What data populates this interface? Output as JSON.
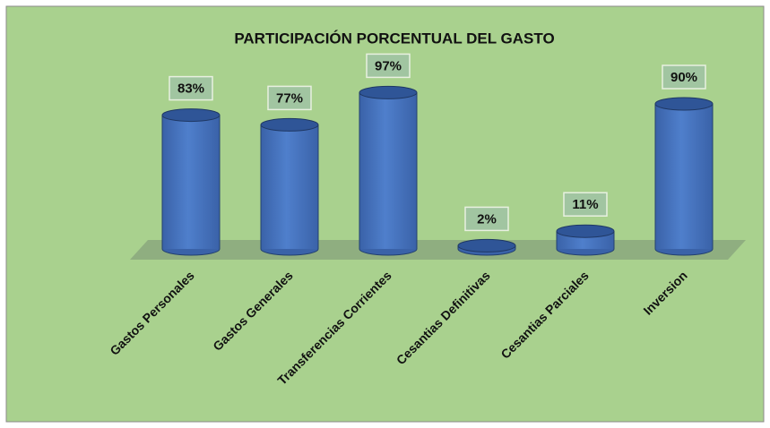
{
  "chart_data": {
    "type": "bar",
    "title": "PARTICIPACIÓN PORCENTUAL DEL  GASTO",
    "categories": [
      "Gastos Personales",
      "Gastos Generales",
      "Transferencias Corrientes",
      "Cesantias Definitivas",
      "Cesantias Parciales",
      "Inversion"
    ],
    "values": [
      83,
      77,
      97,
      2,
      11,
      90
    ],
    "value_labels": [
      "83%",
      "77%",
      "97%",
      "2%",
      "11%",
      "90%"
    ],
    "color": "#4472c4"
  }
}
